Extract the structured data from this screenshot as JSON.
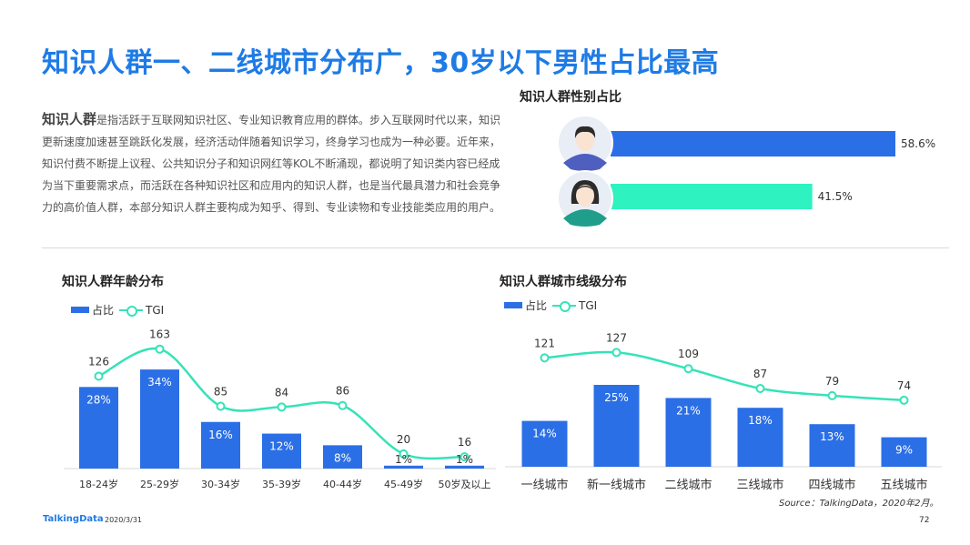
{
  "page": {
    "title": "知识人群一、二线城市分布广，30岁以下男性占比最高",
    "intro_lead": "知识人群",
    "intro_body": "是指活跃于互联网知识社区、专业知识教育应用的群体。步入互联网时代以来，知识更新速度加速甚至跳跃化发展，经济活动伴随着知识学习，终身学习也成为一种必要。近年来，知识付费不断提上议程、公共知识分子和知识网红等KOL不断涌现，都说明了知识类内容已经成为当下重要需求点，而活跃在各种知识社区和应用内的知识人群，也是当代最具潜力和社会竞争力的高价值人群，本部分知识人群主要构成为知乎、得到、专业读物和专业技能类应用的用户。",
    "source": "Source：TalkingData，2020年2月。",
    "logo": "TalkingData",
    "date": "2020/3/31",
    "page_number": "72"
  },
  "colors": {
    "accent": "#1e7be6",
    "bar": "#2b6fe6",
    "tgi": "#35e3b8",
    "male_bar": "#2b6fe6",
    "female_bar": "#2ef2c0"
  },
  "chart_data": [
    {
      "type": "bar",
      "title": "知识人群性别占比",
      "orientation": "horizontal",
      "categories": [
        "male-avatar-icon",
        "female-avatar-icon"
      ],
      "values": [
        58.6,
        41.5
      ],
      "labels": [
        "58.6%",
        "41.5%"
      ],
      "xlim": [
        0,
        60
      ]
    },
    {
      "type": "bar",
      "title": "知识人群年龄分布",
      "legend": [
        "占比",
        "TGI"
      ],
      "categories": [
        "18-24岁",
        "25-29岁",
        "30-34岁",
        "35-39岁",
        "40-44岁",
        "45-49岁",
        "50岁及以上"
      ],
      "series": [
        {
          "name": "占比",
          "type": "bar",
          "values": [
            28,
            34,
            16,
            12,
            8,
            1,
            1
          ],
          "labels": [
            "28%",
            "34%",
            "16%",
            "12%",
            "8%",
            "1%",
            "1%"
          ]
        },
        {
          "name": "TGI",
          "type": "line",
          "values": [
            126,
            163,
            85,
            84,
            86,
            20,
            16
          ],
          "labels": [
            "126",
            "163",
            "85",
            "84",
            "86",
            "20",
            "16"
          ]
        }
      ],
      "ylim_bar": [
        0,
        36
      ],
      "ylim_line": [
        0,
        180
      ]
    },
    {
      "type": "bar",
      "title": "知识人群城市线级分布",
      "legend": [
        "占比",
        "TGI"
      ],
      "categories": [
        "一线城市",
        "新一线城市",
        "二线城市",
        "三线城市",
        "四线城市",
        "五线城市"
      ],
      "series": [
        {
          "name": "占比",
          "type": "bar",
          "values": [
            14,
            25,
            21,
            18,
            13,
            9
          ],
          "labels": [
            "14%",
            "25%",
            "21%",
            "18%",
            "13%",
            "9%"
          ]
        },
        {
          "name": "TGI",
          "type": "line",
          "values": [
            121,
            127,
            109,
            87,
            79,
            74
          ],
          "labels": [
            "121",
            "127",
            "109",
            "87",
            "79",
            "74"
          ]
        }
      ],
      "ylim_bar": [
        0,
        36
      ],
      "ylim_line": [
        0,
        180
      ]
    }
  ]
}
